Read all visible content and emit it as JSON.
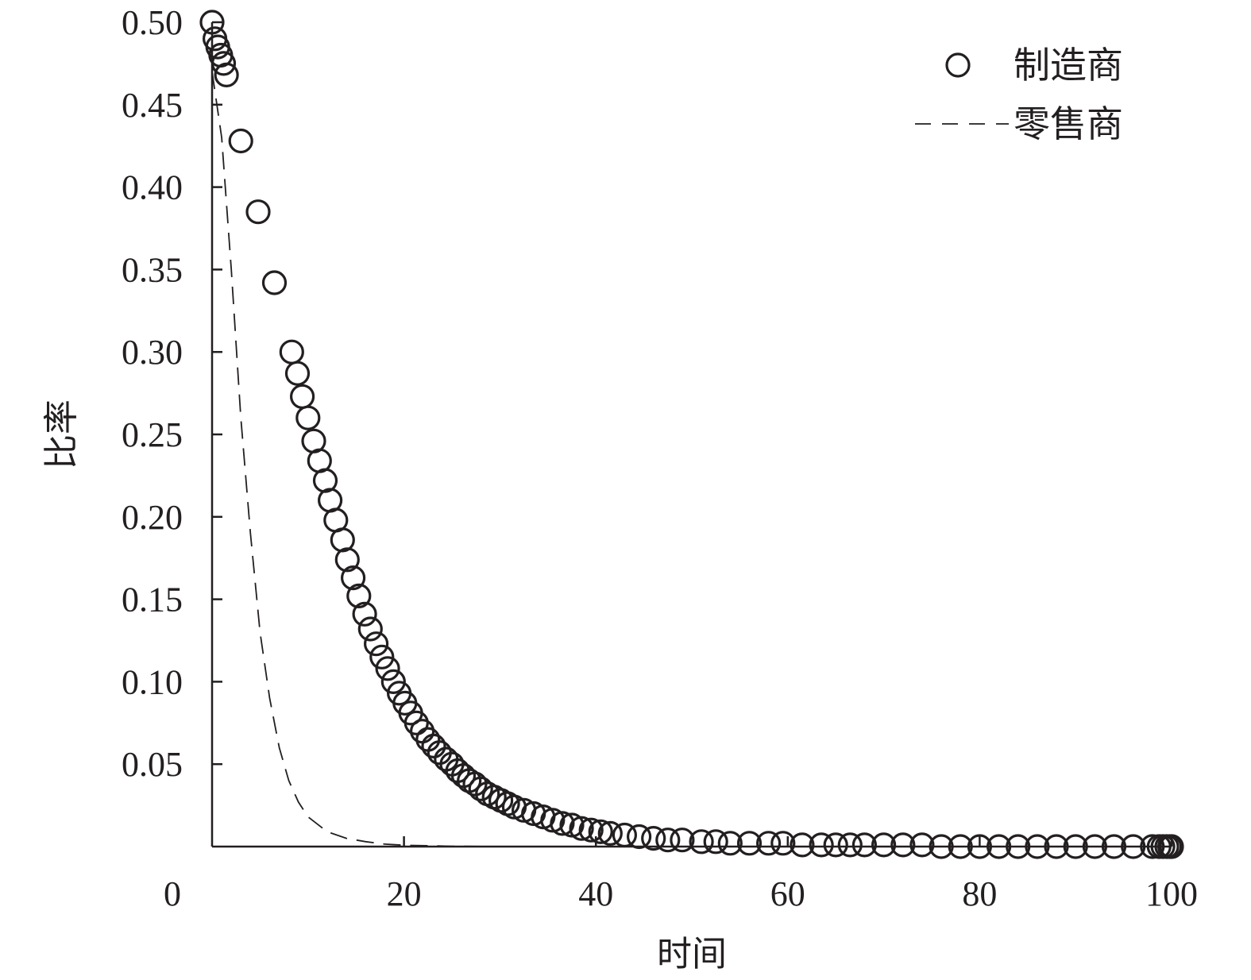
{
  "chart_data": {
    "type": "scatter",
    "xlabel": "时间",
    "ylabel": "比率",
    "xlim": [
      0,
      100
    ],
    "ylim": [
      0,
      0.5
    ],
    "x_ticks": [
      "0",
      "20",
      "40",
      "60",
      "80",
      "100"
    ],
    "y_ticks": [
      "0.05",
      "0.10",
      "0.15",
      "0.20",
      "0.25",
      "0.30",
      "0.35",
      "0.40",
      "0.45",
      "0.50"
    ],
    "legend_position": "top-right",
    "series": [
      {
        "name": "制造商",
        "marker": "circle-open",
        "x": [
          0,
          0.3,
          0.6,
          0.9,
          1.2,
          1.5,
          3,
          4.8,
          6.5,
          8.3,
          8.9,
          9.4,
          10,
          10.6,
          11.2,
          11.8,
          12.3,
          12.9,
          13.6,
          14.1,
          14.7,
          15.3,
          15.9,
          16.5,
          17.1,
          17.7,
          18.3,
          18.9,
          19.5,
          20.1,
          20.7,
          21.3,
          21.9,
          22.5,
          23.1,
          23.7,
          24.4,
          25,
          25.6,
          26.2,
          26.8,
          27.4,
          28,
          28.7,
          29.4,
          30.1,
          30.8,
          31.5,
          32.5,
          33.5,
          34.5,
          35.5,
          36.5,
          37.5,
          38.5,
          39.5,
          40.5,
          41.5,
          43,
          44.5,
          46,
          47.5,
          49,
          51,
          52.5,
          54,
          56,
          58,
          59.5,
          61.5,
          63.5,
          65,
          66.5,
          68,
          70,
          72,
          74,
          76,
          78,
          80,
          82,
          84,
          86,
          88,
          90,
          92,
          94,
          96,
          98,
          98.7,
          99.1,
          99.5,
          99.8,
          100
        ],
        "y": [
          0.5,
          0.49,
          0.485,
          0.48,
          0.475,
          0.468,
          0.428,
          0.385,
          0.342,
          0.3,
          0.287,
          0.273,
          0.26,
          0.246,
          0.234,
          0.222,
          0.21,
          0.198,
          0.186,
          0.174,
          0.163,
          0.152,
          0.141,
          0.132,
          0.123,
          0.115,
          0.108,
          0.1,
          0.093,
          0.087,
          0.081,
          0.075,
          0.07,
          0.065,
          0.061,
          0.057,
          0.053,
          0.05,
          0.046,
          0.043,
          0.04,
          0.038,
          0.035,
          0.032,
          0.03,
          0.028,
          0.026,
          0.024,
          0.022,
          0.02,
          0.018,
          0.016,
          0.014,
          0.013,
          0.011,
          0.01,
          0.009,
          0.008,
          0.007,
          0.006,
          0.005,
          0.004,
          0.004,
          0.003,
          0.003,
          0.002,
          0.002,
          0.002,
          0.002,
          0.001,
          0.001,
          0.001,
          0.001,
          0.001,
          0.001,
          0.001,
          0.001,
          0.0,
          0.0,
          0.0,
          0.0,
          0.0,
          0.0,
          0.0,
          0.0,
          0.0,
          0.0,
          0.0,
          0.0,
          0.0,
          0.0,
          0.0,
          0.0,
          0.0
        ]
      },
      {
        "name": "零售商",
        "line_style": "dashed",
        "x": [
          0,
          1,
          2,
          3,
          4,
          5,
          6,
          7,
          8,
          9,
          10,
          12,
          14,
          16,
          18,
          20,
          25,
          30,
          35,
          40,
          45
        ],
        "y": [
          0.47,
          0.43,
          0.35,
          0.26,
          0.19,
          0.13,
          0.09,
          0.06,
          0.04,
          0.027,
          0.018,
          0.009,
          0.005,
          0.003,
          0.0015,
          0.0008,
          0.0002,
          0.0,
          0.0,
          0.0,
          0.0
        ]
      }
    ]
  }
}
